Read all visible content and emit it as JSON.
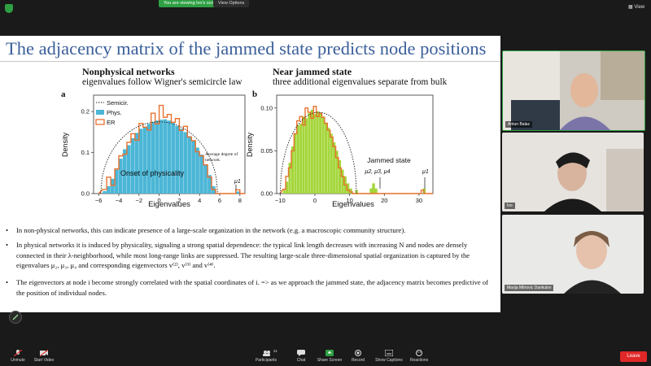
{
  "topbar": {
    "viewing_label": "You are viewing Ivo's screen",
    "view_options_label": "View Options",
    "view_label": "View"
  },
  "slide": {
    "title": "The adjacency matrix of the jammed state predicts node positions",
    "left": {
      "heading": "Nonphysical networks",
      "subtitle": "eigenvalues follow Wigner's semicircle law",
      "panel_letter": "a"
    },
    "right": {
      "heading": "Near jammed state",
      "subtitle": "three additional eigenvalues separate from bulk",
      "panel_letter": "b"
    },
    "bullets": [
      "In non-physical networks, this can indicate presence of a large-scale organization in the network (e.g. a macroscopic community structure).",
      "In physical networks it is induced by physicality, signaling a strong spatial dependence: the typical link length decreases with increasing N and nodes are densely connected in their λ-neighborhood, while most long-range links are suppressed. The resulting large-scale three-dimensional spatial organization is captured by the eigenvalues μ₂, μ₃, μ₄ and corresponding eigenvectors v⁽²⁾, v⁽³⁾ and v⁽⁴⁾.",
      "The eigenvectors at node i become strongly correlated with the spatial coordinates of i. => as we approach the jammed state, the adjacency matrix becomes predictive of the position of individual nodes."
    ]
  },
  "chart_data": [
    {
      "type": "bar",
      "panel": "a",
      "xlabel": "Eigenvalues",
      "ylabel": "Density",
      "xticks": [
        "−6",
        "−4",
        "−2",
        "0",
        "2",
        "4",
        "6",
        "8"
      ],
      "yticks": [
        "0.0",
        "0.1",
        "0.2"
      ],
      "xlim": [
        -6.5,
        8.5
      ],
      "ylim": [
        0,
        0.24
      ],
      "legend": [
        "Semicir.",
        "Phys.",
        "ER"
      ],
      "legend_position": "top-left",
      "annotations": {
        "center": "Onset of physicality",
        "degree": "Average degree of network",
        "mu1": "μ1"
      },
      "bins_start": -5.6,
      "bin_width": 0.4,
      "phys": [
        0.006,
        0.018,
        0.036,
        0.058,
        0.085,
        0.108,
        0.118,
        0.135,
        0.148,
        0.158,
        0.163,
        0.17,
        0.175,
        0.178,
        0.18,
        0.181,
        0.178,
        0.172,
        0.165,
        0.158,
        0.15,
        0.14,
        0.128,
        0.112,
        0.095,
        0.07,
        0.045,
        0.018
      ],
      "er": [
        0.01,
        0.04,
        0.02,
        0.06,
        0.092,
        0.096,
        0.125,
        0.146,
        0.13,
        0.171,
        0.162,
        0.155,
        0.196,
        0.17,
        0.215,
        0.186,
        0.193,
        0.174,
        0.183,
        0.154,
        0.164,
        0.138,
        0.129,
        0.102,
        0.092,
        0.07,
        0.04,
        0.01
      ],
      "phys_outlier": {
        "x": 7.8,
        "value": 0.005
      },
      "er_outlier": {
        "x": 7.8,
        "value": 0.009
      },
      "semicircle_radius": 5.8,
      "semicircle_peak": 0.175
    },
    {
      "type": "bar",
      "panel": "b",
      "xlabel": "Eigenvalues",
      "ylabel": "Density",
      "xticks": [
        "−10",
        "0",
        "10",
        "20",
        "30"
      ],
      "yticks": [
        "0.00",
        "0.05",
        "0.10"
      ],
      "xlim": [
        -11,
        34
      ],
      "ylim": [
        0,
        0.115
      ],
      "annotations": {
        "jammed": "Jammed state",
        "mus": "μ2, μ3, μ4",
        "mu1": "μ1"
      },
      "bins_start": -9.2,
      "bin_width": 0.8,
      "phys": [
        0.004,
        0.014,
        0.036,
        0.055,
        0.07,
        0.08,
        0.082,
        0.09,
        0.088,
        0.094,
        0.098,
        0.093,
        0.096,
        0.094,
        0.09,
        0.083,
        0.077,
        0.07,
        0.06,
        0.05,
        0.039,
        0.028,
        0.02,
        0.012,
        0.006
      ],
      "er": [
        0.005,
        0.02,
        0.03,
        0.05,
        0.07,
        0.085,
        0.09,
        0.08,
        0.1,
        0.095,
        0.088,
        0.102,
        0.09,
        0.094,
        0.089,
        0.082,
        0.074,
        0.066,
        0.055,
        0.042,
        0.03,
        0.02,
        0.01,
        0.004,
        0.002
      ],
      "phys_outliers": [
        {
          "x": 16.2,
          "value": 0.006
        },
        {
          "x": 16.9,
          "value": 0.012
        },
        {
          "x": 17.6,
          "value": 0.006
        },
        {
          "x": 12.0,
          "value": 0.004
        }
      ],
      "er_outliers": [
        {
          "x": 31.0,
          "value": 0.004
        }
      ],
      "phys_mu1": {
        "x": 31.5,
        "value": 0.006
      },
      "wigner_center": 1.0,
      "wigner_radius": 11.0,
      "wigner_peak": 0.095
    }
  ],
  "participants": [
    {
      "name": "Antun Balaz"
    },
    {
      "name": "Ivo"
    },
    {
      "name": "Marija Mitrovic Dankulov"
    }
  ],
  "toolbar": {
    "unmute": "Unmute",
    "start_video": "Start Video",
    "participants": "Participants",
    "participants_count": "21",
    "chat": "Chat",
    "share_screen": "Share Screen",
    "record": "Record",
    "show_captions": "Show Captions",
    "reactions": "Reactions",
    "leave": "Leave"
  },
  "colors": {
    "phys_a": "#4cb6d6",
    "phys_b": "#a4d63a",
    "er": "#e8712e",
    "title": "#3a5f9a",
    "leave": "#e02828",
    "share": "#2ea043"
  }
}
